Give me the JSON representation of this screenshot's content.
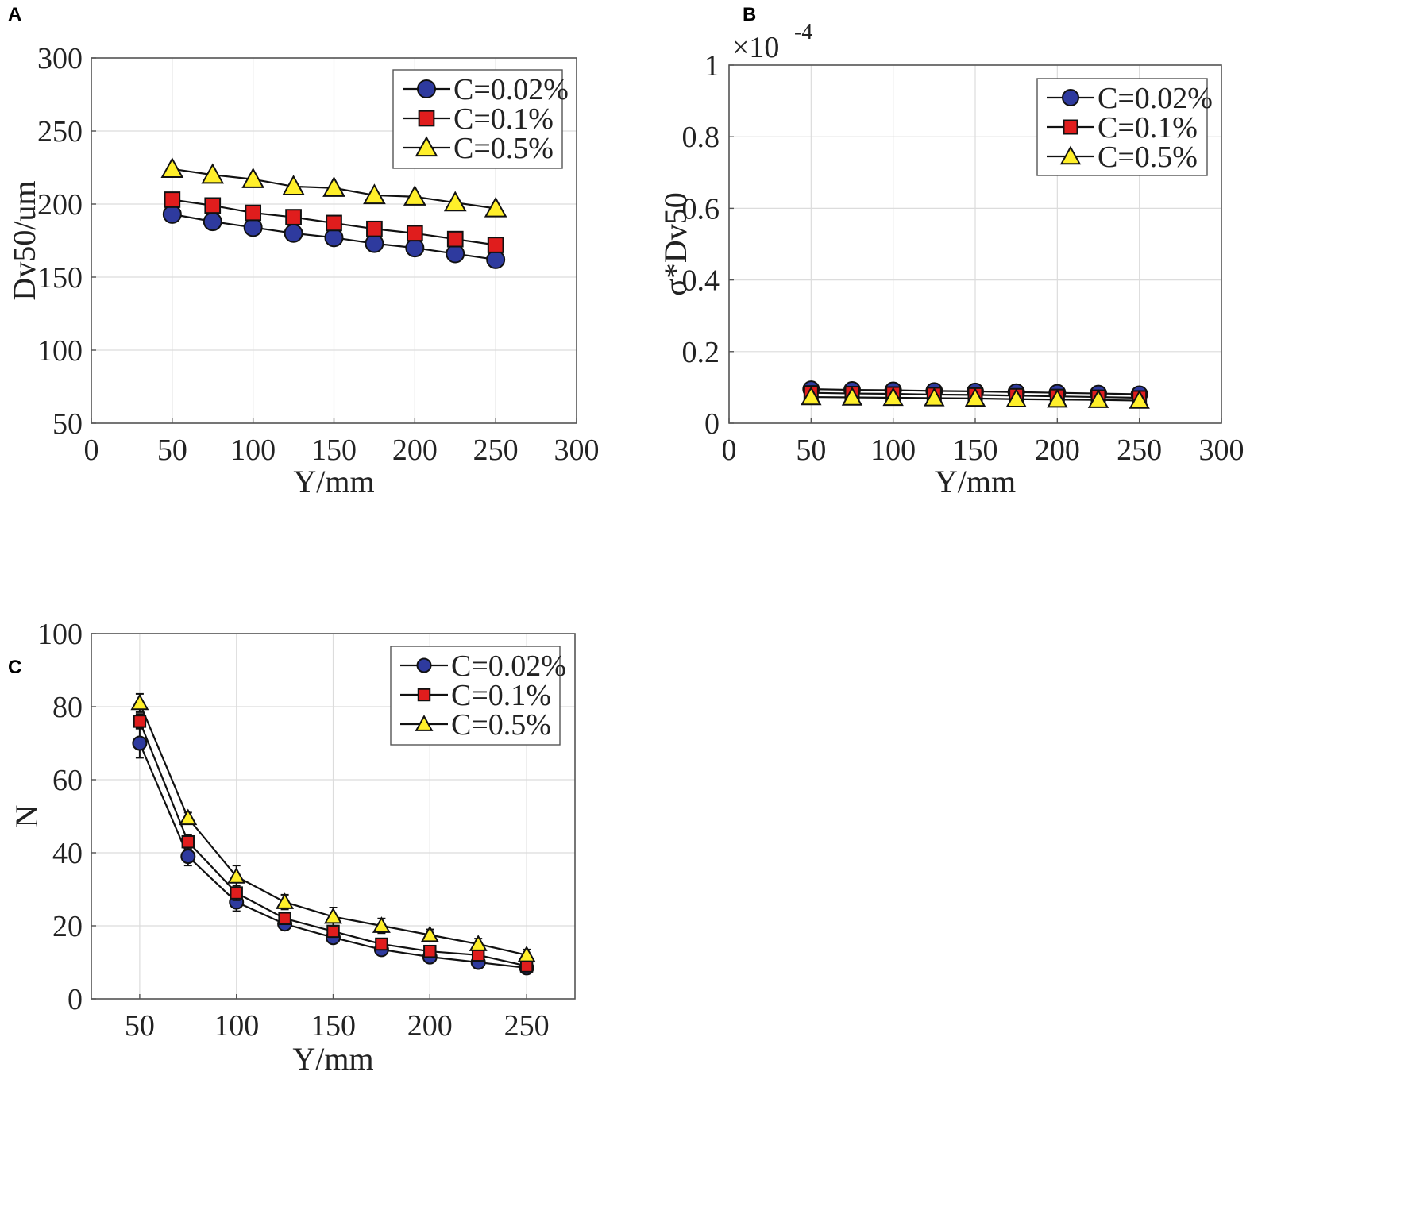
{
  "colors": {
    "series_0": "#2e3a9e",
    "series_1": "#e01d1d",
    "series_2": "#ffef2a",
    "line": "#111111",
    "grid": "#dcdcdc",
    "frame": "#555555"
  },
  "chart_data": [
    {
      "panel": "A",
      "type": "line",
      "xlabel": "Y/mm",
      "ylabel": "Dv50/um",
      "xlim": [
        0,
        300
      ],
      "ylim": [
        50,
        300
      ],
      "xticks": [
        "0",
        "50",
        "100",
        "150",
        "200",
        "250",
        "300"
      ],
      "yticks": [
        "50",
        "100",
        "150",
        "200",
        "250",
        "300"
      ],
      "grid": true,
      "legend_position": "top-right",
      "x": [
        50,
        75,
        100,
        125,
        150,
        175,
        200,
        225,
        250
      ],
      "series": [
        {
          "name": "C=0.02%",
          "marker": "circle",
          "values": [
            193,
            188,
            184,
            180,
            177,
            173,
            170,
            166,
            162
          ]
        },
        {
          "name": "C=0.1%",
          "marker": "square",
          "values": [
            203,
            199,
            194,
            191,
            187,
            183,
            180,
            176,
            172
          ]
        },
        {
          "name": "C=0.5%",
          "marker": "triangle",
          "values": [
            224,
            220,
            217,
            212,
            211,
            206,
            205,
            201,
            197
          ]
        }
      ]
    },
    {
      "panel": "B",
      "type": "line",
      "xlabel": "Y/mm",
      "ylabel": "σ*Dv50",
      "exponent_base": "×10",
      "exponent_power": "-4",
      "xlim": [
        0,
        300
      ],
      "ylim": [
        0,
        1
      ],
      "xticks": [
        "0",
        "50",
        "100",
        "150",
        "200",
        "250",
        "300"
      ],
      "yticks": [
        "0",
        "0.2",
        "0.4",
        "0.6",
        "0.8",
        "1"
      ],
      "grid": true,
      "legend_position": "top-right",
      "x": [
        50,
        75,
        100,
        125,
        150,
        175,
        200,
        225,
        250
      ],
      "series": [
        {
          "name": "C=0.02%",
          "marker": "circle",
          "values": [
            0.095,
            0.093,
            0.092,
            0.09,
            0.089,
            0.087,
            0.085,
            0.083,
            0.081
          ]
        },
        {
          "name": "C=0.1%",
          "marker": "square",
          "values": [
            0.085,
            0.083,
            0.082,
            0.08,
            0.079,
            0.077,
            0.075,
            0.073,
            0.071
          ]
        },
        {
          "name": "C=0.5%",
          "marker": "triangle",
          "values": [
            0.073,
            0.072,
            0.071,
            0.07,
            0.069,
            0.067,
            0.066,
            0.065,
            0.063
          ]
        }
      ]
    },
    {
      "panel": "C",
      "type": "line",
      "xlabel": "Y/mm",
      "ylabel": "N",
      "xlim": [
        25,
        275
      ],
      "ylim": [
        0,
        100
      ],
      "xticks": [
        "50",
        "100",
        "150",
        "200",
        "250"
      ],
      "yticks": [
        "0",
        "20",
        "40",
        "60",
        "80",
        "100"
      ],
      "grid": true,
      "legend_position": "top-right",
      "x": [
        50,
        75,
        100,
        125,
        150,
        175,
        200,
        225,
        250
      ],
      "series": [
        {
          "name": "C=0.02%",
          "marker": "circle",
          "values": [
            70,
            39,
            26.5,
            20.5,
            16.8,
            13.5,
            11.5,
            10,
            8.5
          ],
          "errors": [
            4,
            2.5,
            2.5,
            1.2,
            1.2,
            1.5,
            1.5,
            1.5,
            1
          ]
        },
        {
          "name": "C=0.1%",
          "marker": "square",
          "values": [
            76,
            43,
            29,
            22,
            18.5,
            15,
            13,
            12,
            9
          ],
          "errors": [
            2,
            2,
            2,
            1.5,
            1.5,
            1.5,
            1.5,
            1.5,
            1
          ]
        },
        {
          "name": "C=0.5%",
          "marker": "triangle",
          "values": [
            81,
            49.5,
            33.5,
            26.5,
            22.5,
            20,
            17.5,
            15,
            12
          ],
          "errors": [
            2.5,
            1.5,
            3,
            2,
            2.5,
            2,
            1.5,
            1.5,
            1.5
          ]
        }
      ]
    }
  ]
}
